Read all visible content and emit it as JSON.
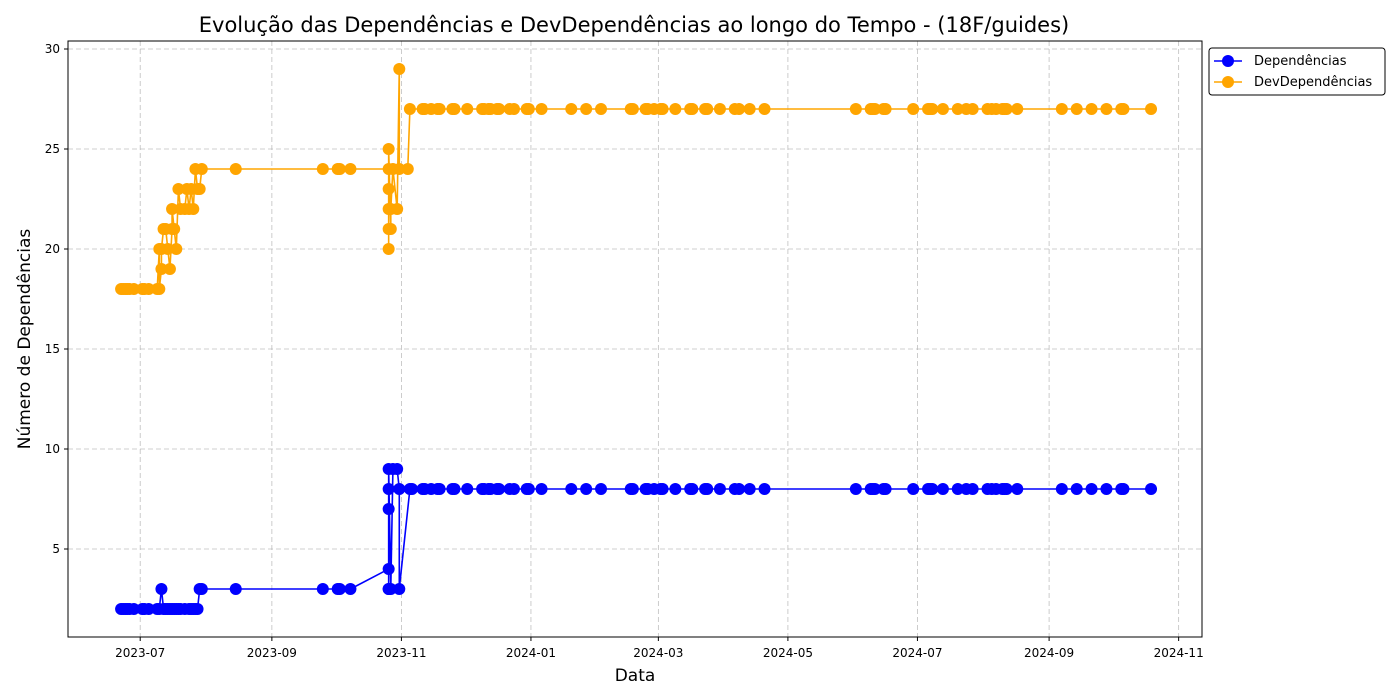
{
  "chart_data": {
    "type": "line",
    "title": "Evolução das Dependências e DevDependências ao longo do Tempo - (18F/guides)",
    "xlabel": "Data",
    "ylabel": "Número de Dependências",
    "xlim": [
      "2023-05-28",
      "2024-11-12"
    ],
    "ylim": [
      0.6,
      30.4
    ],
    "x_ticks": [
      "2023-07",
      "2023-09",
      "2023-11",
      "2024-01",
      "2024-03",
      "2024-05",
      "2024-07",
      "2024-09",
      "2024-11"
    ],
    "y_ticks": [
      5,
      10,
      15,
      20,
      25,
      30
    ],
    "grid": true,
    "legend_position": "outside-top-right",
    "series": [
      {
        "name": "Dependências",
        "color": "#0000ff",
        "marker": "circle",
        "points": [
          [
            "2023-06-22",
            2
          ],
          [
            "2023-06-23",
            2
          ],
          [
            "2023-06-24",
            2
          ],
          [
            "2023-06-25",
            2
          ],
          [
            "2023-06-26",
            2
          ],
          [
            "2023-06-28",
            2
          ],
          [
            "2023-07-02",
            2
          ],
          [
            "2023-07-03",
            2
          ],
          [
            "2023-07-05",
            2
          ],
          [
            "2023-07-09",
            2
          ],
          [
            "2023-07-10",
            2
          ],
          [
            "2023-07-11",
            3
          ],
          [
            "2023-07-12",
            2
          ],
          [
            "2023-07-13",
            2
          ],
          [
            "2023-07-14",
            2
          ],
          [
            "2023-07-15",
            2
          ],
          [
            "2023-07-16",
            2
          ],
          [
            "2023-07-17",
            2
          ],
          [
            "2023-07-18",
            2
          ],
          [
            "2023-07-19",
            2
          ],
          [
            "2023-07-20",
            2
          ],
          [
            "2023-07-22",
            2
          ],
          [
            "2023-07-24",
            2
          ],
          [
            "2023-07-25",
            2
          ],
          [
            "2023-07-26",
            2
          ],
          [
            "2023-07-27",
            2
          ],
          [
            "2023-07-28",
            2
          ],
          [
            "2023-07-29",
            3
          ],
          [
            "2023-07-30",
            3
          ],
          [
            "2023-08-15",
            3
          ],
          [
            "2023-09-25",
            3
          ],
          [
            "2023-10-02",
            3
          ],
          [
            "2023-10-03",
            3
          ],
          [
            "2023-10-08",
            3
          ],
          [
            "2023-10-26",
            4
          ],
          [
            "2023-10-26",
            3
          ],
          [
            "2023-10-26",
            3
          ],
          [
            "2023-10-26",
            7
          ],
          [
            "2023-10-26",
            8
          ],
          [
            "2023-10-26",
            9
          ],
          [
            "2023-10-27",
            3
          ],
          [
            "2023-10-28",
            9
          ],
          [
            "2023-10-30",
            9
          ],
          [
            "2023-10-31",
            8
          ],
          [
            "2023-10-31",
            3
          ],
          [
            "2023-11-05",
            8
          ],
          [
            "2023-11-06",
            8
          ],
          [
            "2023-11-11",
            8
          ],
          [
            "2023-11-12",
            8
          ],
          [
            "2023-11-15",
            8
          ],
          [
            "2023-11-18",
            8
          ],
          [
            "2023-11-19",
            8
          ],
          [
            "2023-11-25",
            8
          ],
          [
            "2023-11-26",
            8
          ],
          [
            "2023-12-02",
            8
          ],
          [
            "2023-12-09",
            8
          ],
          [
            "2023-12-10",
            8
          ],
          [
            "2023-12-12",
            8
          ],
          [
            "2023-12-13",
            8
          ],
          [
            "2023-12-16",
            8
          ],
          [
            "2023-12-17",
            8
          ],
          [
            "2023-12-22",
            8
          ],
          [
            "2023-12-24",
            8
          ],
          [
            "2023-12-30",
            8
          ],
          [
            "2023-12-31",
            8
          ],
          [
            "2024-01-06",
            8
          ],
          [
            "2024-01-20",
            8
          ],
          [
            "2024-01-27",
            8
          ],
          [
            "2024-02-03",
            8
          ],
          [
            "2024-02-17",
            8
          ],
          [
            "2024-02-18",
            8
          ],
          [
            "2024-02-24",
            8
          ],
          [
            "2024-02-25",
            8
          ],
          [
            "2024-02-28",
            8
          ],
          [
            "2024-03-02",
            8
          ],
          [
            "2024-03-03",
            8
          ],
          [
            "2024-03-09",
            8
          ],
          [
            "2024-03-16",
            8
          ],
          [
            "2024-03-17",
            8
          ],
          [
            "2024-03-23",
            8
          ],
          [
            "2024-03-24",
            8
          ],
          [
            "2024-03-30",
            8
          ],
          [
            "2024-04-06",
            8
          ],
          [
            "2024-04-08",
            8
          ],
          [
            "2024-04-13",
            8
          ],
          [
            "2024-04-20",
            8
          ],
          [
            "2024-06-02",
            8
          ],
          [
            "2024-06-09",
            8
          ],
          [
            "2024-06-10",
            8
          ],
          [
            "2024-06-11",
            8
          ],
          [
            "2024-06-15",
            8
          ],
          [
            "2024-06-16",
            8
          ],
          [
            "2024-06-29",
            8
          ],
          [
            "2024-07-06",
            8
          ],
          [
            "2024-07-07",
            8
          ],
          [
            "2024-07-08",
            8
          ],
          [
            "2024-07-13",
            8
          ],
          [
            "2024-07-20",
            8
          ],
          [
            "2024-07-24",
            8
          ],
          [
            "2024-07-27",
            8
          ],
          [
            "2024-08-03",
            8
          ],
          [
            "2024-08-05",
            8
          ],
          [
            "2024-08-07",
            8
          ],
          [
            "2024-08-10",
            8
          ],
          [
            "2024-08-11",
            8
          ],
          [
            "2024-08-12",
            8
          ],
          [
            "2024-08-17",
            8
          ],
          [
            "2024-09-07",
            8
          ],
          [
            "2024-09-14",
            8
          ],
          [
            "2024-09-21",
            8
          ],
          [
            "2024-09-28",
            8
          ],
          [
            "2024-10-05",
            8
          ],
          [
            "2024-10-06",
            8
          ],
          [
            "2024-10-19",
            8
          ]
        ]
      },
      {
        "name": "DevDependências",
        "color": "#ffa500",
        "marker": "circle",
        "points": [
          [
            "2023-06-22",
            18
          ],
          [
            "2023-06-23",
            18
          ],
          [
            "2023-06-24",
            18
          ],
          [
            "2023-06-25",
            18
          ],
          [
            "2023-06-26",
            18
          ],
          [
            "2023-06-28",
            18
          ],
          [
            "2023-07-02",
            18
          ],
          [
            "2023-07-03",
            18
          ],
          [
            "2023-07-05",
            18
          ],
          [
            "2023-07-09",
            18
          ],
          [
            "2023-07-10",
            20
          ],
          [
            "2023-07-10",
            18
          ],
          [
            "2023-07-11",
            19
          ],
          [
            "2023-07-11",
            20
          ],
          [
            "2023-07-12",
            21
          ],
          [
            "2023-07-13",
            21
          ],
          [
            "2023-07-14",
            20
          ],
          [
            "2023-07-15",
            19
          ],
          [
            "2023-07-16",
            21
          ],
          [
            "2023-07-16",
            22
          ],
          [
            "2023-07-17",
            21
          ],
          [
            "2023-07-18",
            20
          ],
          [
            "2023-07-19",
            23
          ],
          [
            "2023-07-20",
            22
          ],
          [
            "2023-07-22",
            22
          ],
          [
            "2023-07-23",
            23
          ],
          [
            "2023-07-24",
            22
          ],
          [
            "2023-07-25",
            23
          ],
          [
            "2023-07-26",
            22
          ],
          [
            "2023-07-27",
            24
          ],
          [
            "2023-07-28",
            23
          ],
          [
            "2023-07-29",
            23
          ],
          [
            "2023-07-30",
            24
          ],
          [
            "2023-08-15",
            24
          ],
          [
            "2023-09-25",
            24
          ],
          [
            "2023-10-02",
            24
          ],
          [
            "2023-10-03",
            24
          ],
          [
            "2023-10-08",
            24
          ],
          [
            "2023-10-26",
            24
          ],
          [
            "2023-10-26",
            20
          ],
          [
            "2023-10-26",
            21
          ],
          [
            "2023-10-26",
            22
          ],
          [
            "2023-10-26",
            23
          ],
          [
            "2023-10-26",
            25
          ],
          [
            "2023-10-27",
            21
          ],
          [
            "2023-10-27",
            22
          ],
          [
            "2023-10-28",
            24
          ],
          [
            "2023-10-30",
            22
          ],
          [
            "2023-10-31",
            29
          ],
          [
            "2023-10-31",
            24
          ],
          [
            "2023-11-04",
            24
          ],
          [
            "2023-11-05",
            27
          ],
          [
            "2023-11-11",
            27
          ],
          [
            "2023-11-12",
            27
          ],
          [
            "2023-11-15",
            27
          ],
          [
            "2023-11-18",
            27
          ],
          [
            "2023-11-19",
            27
          ],
          [
            "2023-11-25",
            27
          ],
          [
            "2023-11-26",
            27
          ],
          [
            "2023-12-02",
            27
          ],
          [
            "2023-12-09",
            27
          ],
          [
            "2023-12-10",
            27
          ],
          [
            "2023-12-12",
            27
          ],
          [
            "2023-12-13",
            27
          ],
          [
            "2023-12-16",
            27
          ],
          [
            "2023-12-17",
            27
          ],
          [
            "2023-12-22",
            27
          ],
          [
            "2023-12-24",
            27
          ],
          [
            "2023-12-30",
            27
          ],
          [
            "2023-12-31",
            27
          ],
          [
            "2024-01-06",
            27
          ],
          [
            "2024-01-20",
            27
          ],
          [
            "2024-01-27",
            27
          ],
          [
            "2024-02-03",
            27
          ],
          [
            "2024-02-17",
            27
          ],
          [
            "2024-02-18",
            27
          ],
          [
            "2024-02-24",
            27
          ],
          [
            "2024-02-25",
            27
          ],
          [
            "2024-02-28",
            27
          ],
          [
            "2024-03-02",
            27
          ],
          [
            "2024-03-03",
            27
          ],
          [
            "2024-03-09",
            27
          ],
          [
            "2024-03-16",
            27
          ],
          [
            "2024-03-17",
            27
          ],
          [
            "2024-03-23",
            27
          ],
          [
            "2024-03-24",
            27
          ],
          [
            "2024-03-30",
            27
          ],
          [
            "2024-04-06",
            27
          ],
          [
            "2024-04-08",
            27
          ],
          [
            "2024-04-13",
            27
          ],
          [
            "2024-04-20",
            27
          ],
          [
            "2024-06-02",
            27
          ],
          [
            "2024-06-09",
            27
          ],
          [
            "2024-06-10",
            27
          ],
          [
            "2024-06-11",
            27
          ],
          [
            "2024-06-15",
            27
          ],
          [
            "2024-06-16",
            27
          ],
          [
            "2024-06-29",
            27
          ],
          [
            "2024-07-06",
            27
          ],
          [
            "2024-07-07",
            27
          ],
          [
            "2024-07-08",
            27
          ],
          [
            "2024-07-13",
            27
          ],
          [
            "2024-07-20",
            27
          ],
          [
            "2024-07-24",
            27
          ],
          [
            "2024-07-27",
            27
          ],
          [
            "2024-08-03",
            27
          ],
          [
            "2024-08-05",
            27
          ],
          [
            "2024-08-07",
            27
          ],
          [
            "2024-08-10",
            27
          ],
          [
            "2024-08-11",
            27
          ],
          [
            "2024-08-12",
            27
          ],
          [
            "2024-08-17",
            27
          ],
          [
            "2024-09-07",
            27
          ],
          [
            "2024-09-14",
            27
          ],
          [
            "2024-09-21",
            27
          ],
          [
            "2024-09-28",
            27
          ],
          [
            "2024-10-05",
            27
          ],
          [
            "2024-10-06",
            27
          ],
          [
            "2024-10-19",
            27
          ]
        ]
      }
    ]
  }
}
